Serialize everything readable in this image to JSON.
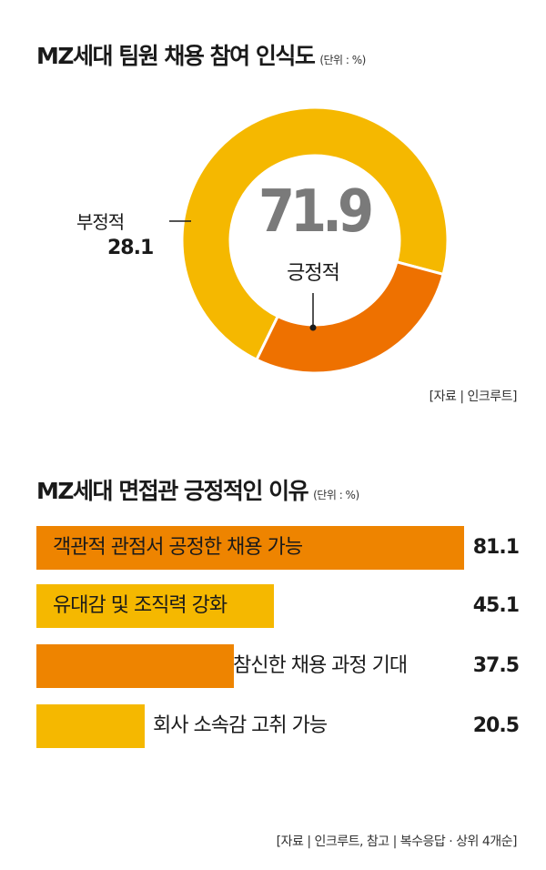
{
  "donut_chart": {
    "title": "MZ세대 팀원 채용 참여 인식도",
    "unit": "(단위 : %)",
    "source": "[자료 | 인크루트]",
    "colors": {
      "positive": "#f5b800",
      "negative": "#ee7100"
    }
  },
  "bar_chart": {
    "title": "MZ세대 면접관 긍정적인 이유",
    "unit": "(단위 : %)",
    "source": "[자료 | 인크루트, 참고 | 복수응답 · 상위 4개순]",
    "colors": [
      "#ee8400",
      "#f5b800",
      "#ee8400",
      "#f5b800"
    ]
  },
  "chart_data": [
    {
      "type": "pie",
      "title": "MZ세대 팀원 채용 참여 인식도",
      "categories": [
        "긍정적",
        "부정적"
      ],
      "values": [
        71.9,
        28.1
      ],
      "labels": [
        "71.9",
        "28.1"
      ]
    },
    {
      "type": "bar",
      "title": "MZ세대 면접관 긍정적인 이유",
      "categories": [
        "객관적 관점서 공정한 채용 가능",
        "유대감 및 조직력 강화",
        "참신한 채용 과정 기대",
        "회사 소속감 고취 가능"
      ],
      "values": [
        81.1,
        45.1,
        37.5,
        20.5
      ],
      "labels": [
        "81.1",
        "45.1",
        "37.5",
        "20.5"
      ],
      "xlim": [
        0,
        100
      ]
    }
  ]
}
